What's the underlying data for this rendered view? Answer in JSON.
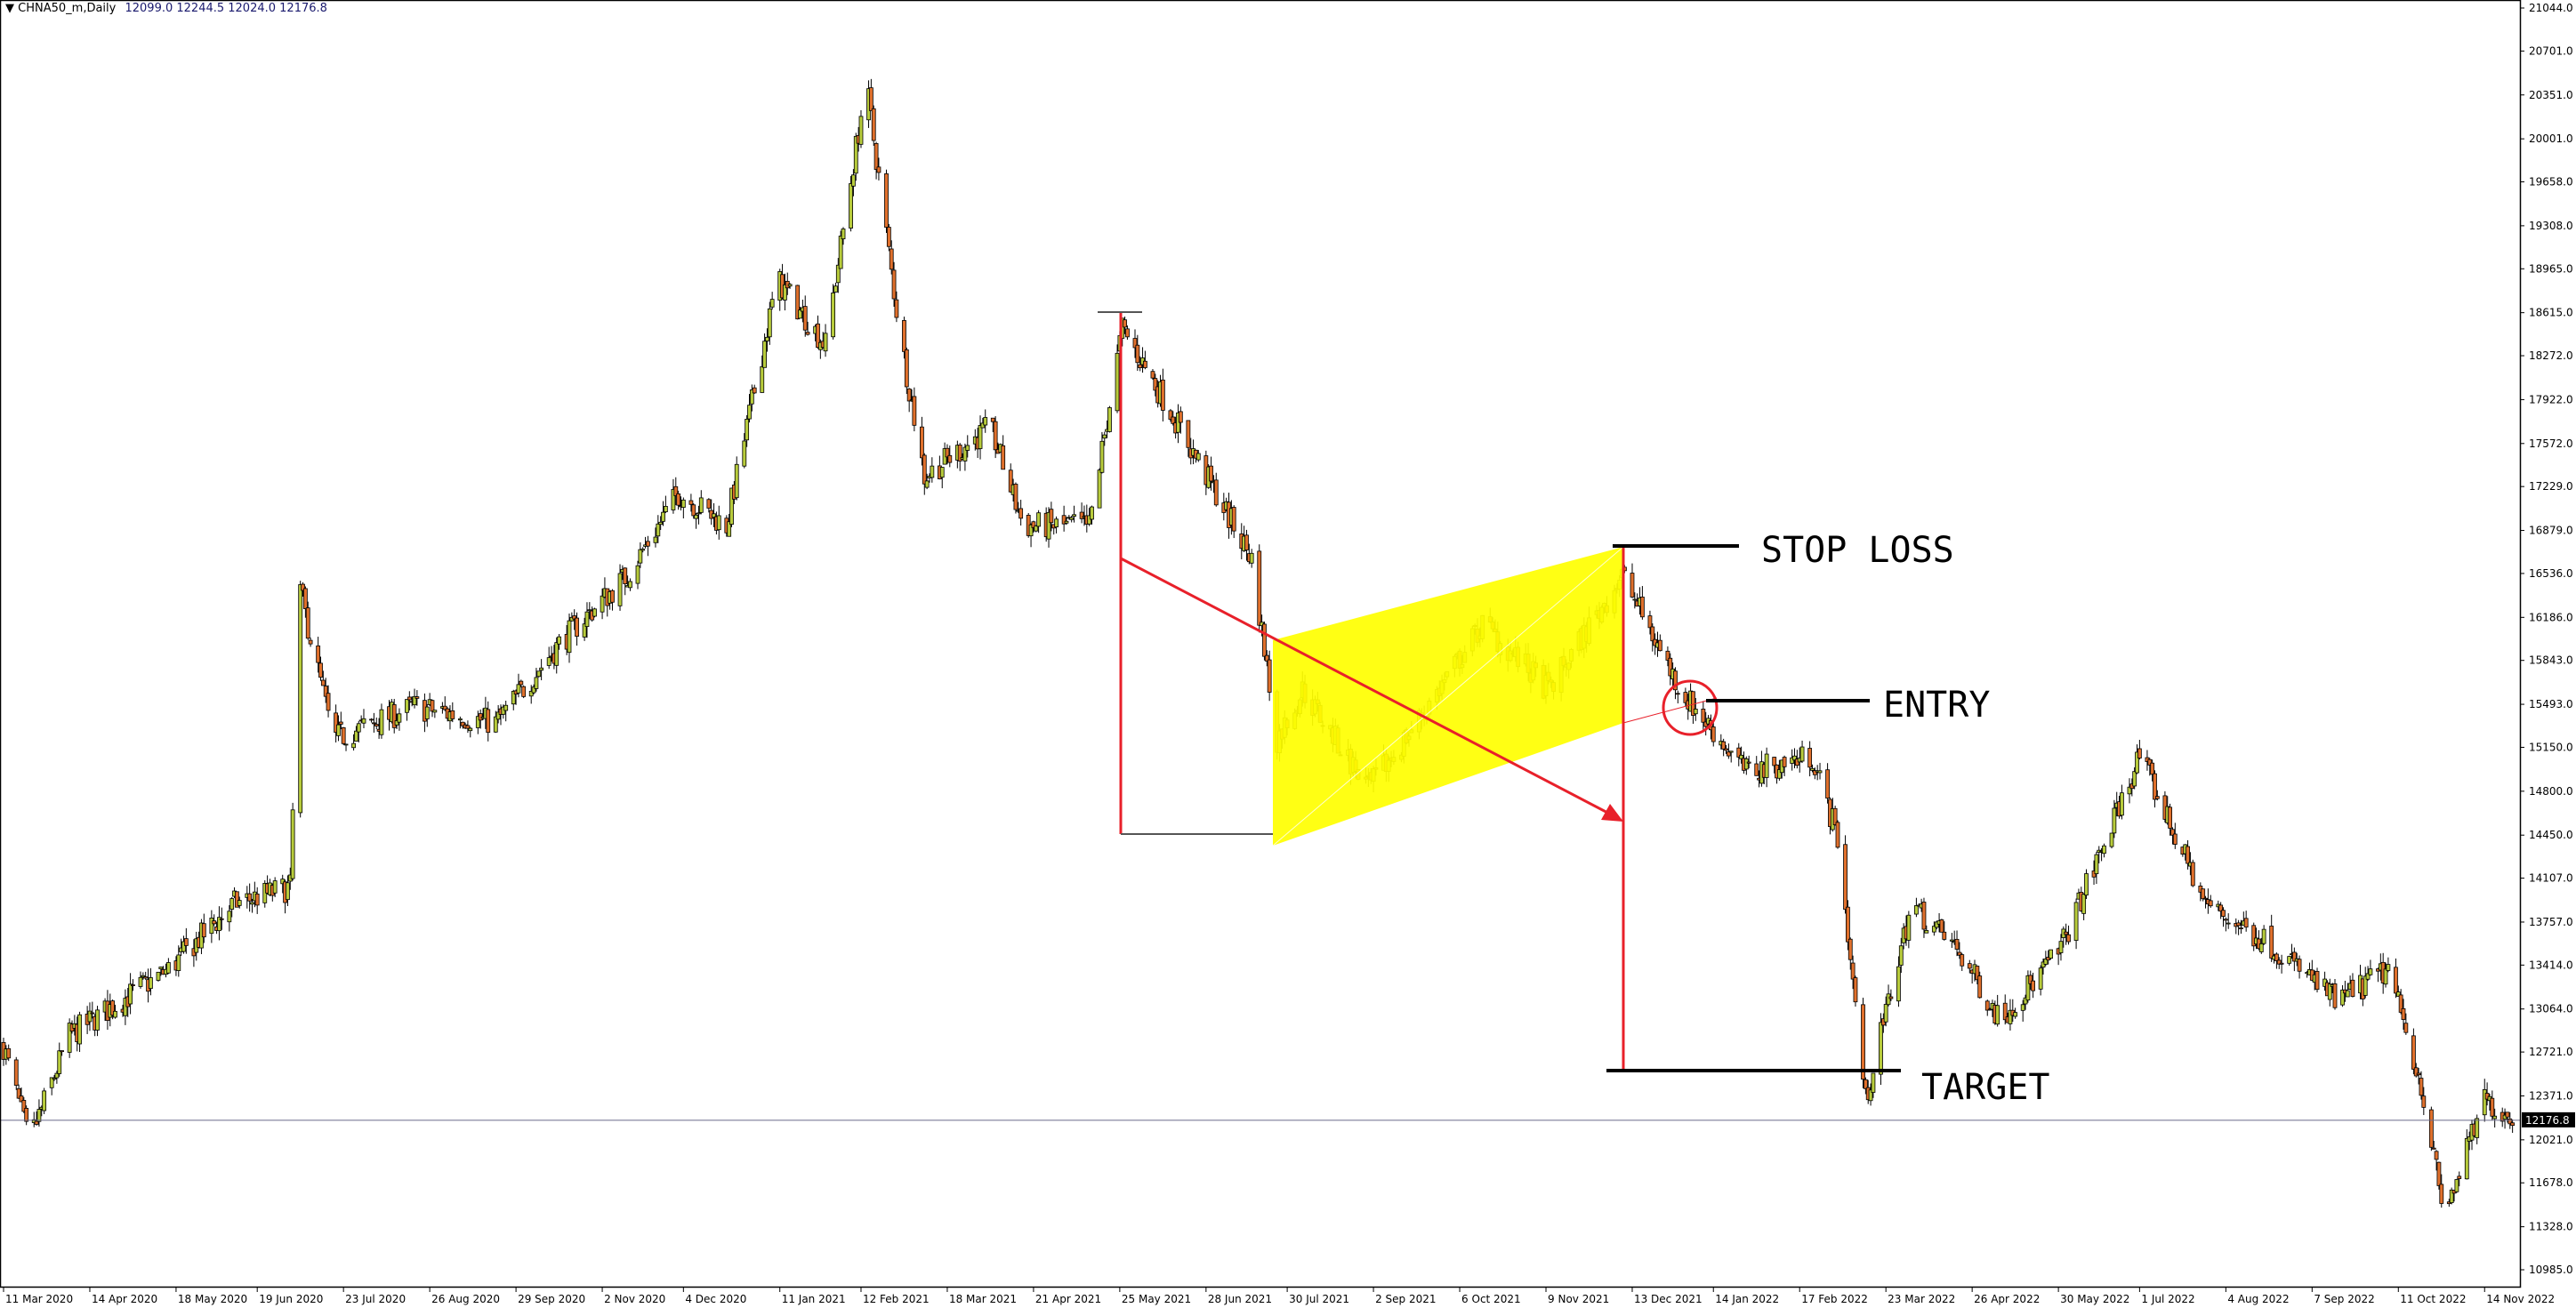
{
  "header": {
    "symbol": "CHNA50_m,Daily",
    "ohlc": "12099.0 12244.5 12024.0 12176.8"
  },
  "chart_data": {
    "type": "candlestick",
    "symbol": "CHNA50_m",
    "timeframe": "Daily",
    "ylim": [
      10985.0,
      21044.0
    ],
    "y_ticks": [
      "21044.0",
      "20701.0",
      "20351.0",
      "20001.0",
      "19658.0",
      "19308.0",
      "18965.0",
      "18615.0",
      "18272.0",
      "17922.0",
      "17572.0",
      "17229.0",
      "16879.0",
      "16536.0",
      "16186.0",
      "15843.0",
      "15493.0",
      "15150.0",
      "14800.0",
      "14450.0",
      "14107.0",
      "13757.0",
      "13414.0",
      "13064.0",
      "12721.0",
      "12371.0",
      "12021.0",
      "11678.0",
      "11328.0",
      "10985.0"
    ],
    "x_ticks": [
      "11 Mar 2020",
      "14 Apr 2020",
      "18 May 2020",
      "19 Jun 2020",
      "23 Jul 2020",
      "26 Aug 2020",
      "29 Sep 2020",
      "2 Nov 2020",
      "4 Dec 2020",
      "11 Jan 2021",
      "12 Feb 2021",
      "18 Mar 2021",
      "21 Apr 2021",
      "25 May 2021",
      "28 Jun 2021",
      "30 Jul 2021",
      "2 Sep 2021",
      "6 Oct 2021",
      "9 Nov 2021",
      "13 Dec 2021",
      "14 Jan 2022",
      "17 Feb 2022",
      "23 Mar 2022",
      "26 Apr 2022",
      "30 May 2022",
      "1 Jul 2022",
      "4 Aug 2022",
      "7 Sep 2022",
      "11 Oct 2022",
      "14 Nov 2022"
    ],
    "current_price": "12176.8",
    "approx_close_path": [
      [
        "2020-03-11",
        12772
      ],
      [
        "2020-03-21",
        12000
      ],
      [
        "2020-04-06",
        12855
      ],
      [
        "2020-05-15",
        13379
      ],
      [
        "2020-06-10",
        13903
      ],
      [
        "2020-07-02",
        14034
      ],
      [
        "2020-07-06",
        16392
      ],
      [
        "2020-07-19",
        15213
      ],
      [
        "2020-08-20",
        15475
      ],
      [
        "2020-09-21",
        15344
      ],
      [
        "2020-10-17",
        15999
      ],
      [
        "2020-11-12",
        16523
      ],
      [
        "2020-12-02",
        17178
      ],
      [
        "2020-12-21",
        16916
      ],
      [
        "2021-01-10",
        18881
      ],
      [
        "2021-01-29",
        18357
      ],
      [
        "2021-02-14",
        20453
      ],
      [
        "2021-02-27",
        18488
      ],
      [
        "2021-03-09",
        17309
      ],
      [
        "2021-04-04",
        17702
      ],
      [
        "2021-04-17",
        16916
      ],
      [
        "2021-05-13",
        16916
      ],
      [
        "2021-05-26",
        18488
      ],
      [
        "2021-06-14",
        17833
      ],
      [
        "2021-07-16",
        16654
      ],
      [
        "2021-07-26",
        15213
      ],
      [
        "2021-08-05",
        15606
      ],
      [
        "2021-08-31",
        14820
      ],
      [
        "2021-09-19",
        15344
      ],
      [
        "2021-10-15",
        16130
      ],
      [
        "2021-11-10",
        15606
      ],
      [
        "2021-12-09",
        16523
      ],
      [
        "2022-01-01",
        15606
      ],
      [
        "2022-01-27",
        14951
      ],
      [
        "2022-02-22",
        15082
      ],
      [
        "2022-03-04",
        14427
      ],
      [
        "2022-03-15",
        12331
      ],
      [
        "2022-04-02",
        13903
      ],
      [
        "2022-04-21",
        13510
      ],
      [
        "2022-05-07",
        12986
      ],
      [
        "2022-05-30",
        13510
      ],
      [
        "2022-06-18",
        14427
      ],
      [
        "2022-07-01",
        15082
      ],
      [
        "2022-07-27",
        13903
      ],
      [
        "2022-08-22",
        13576
      ],
      [
        "2022-09-17",
        13117
      ],
      [
        "2022-10-07",
        13379
      ],
      [
        "2022-10-20",
        12462
      ],
      [
        "2022-10-29",
        11414
      ],
      [
        "2022-11-14",
        12331
      ],
      [
        "2022-11-27",
        12177
      ]
    ],
    "annotations": {
      "stop_loss_label": "STOP LOSS",
      "entry_label": "ENTRY",
      "target_label": "TARGET",
      "pattern": "bearish flag channel"
    },
    "colors": {
      "bull_candle": "#b8cc3c",
      "bear_candle": "#e0702c",
      "channel_fill": "#ffff00",
      "measure_lines": "#e8202a",
      "level_lines": "#000000"
    }
  }
}
